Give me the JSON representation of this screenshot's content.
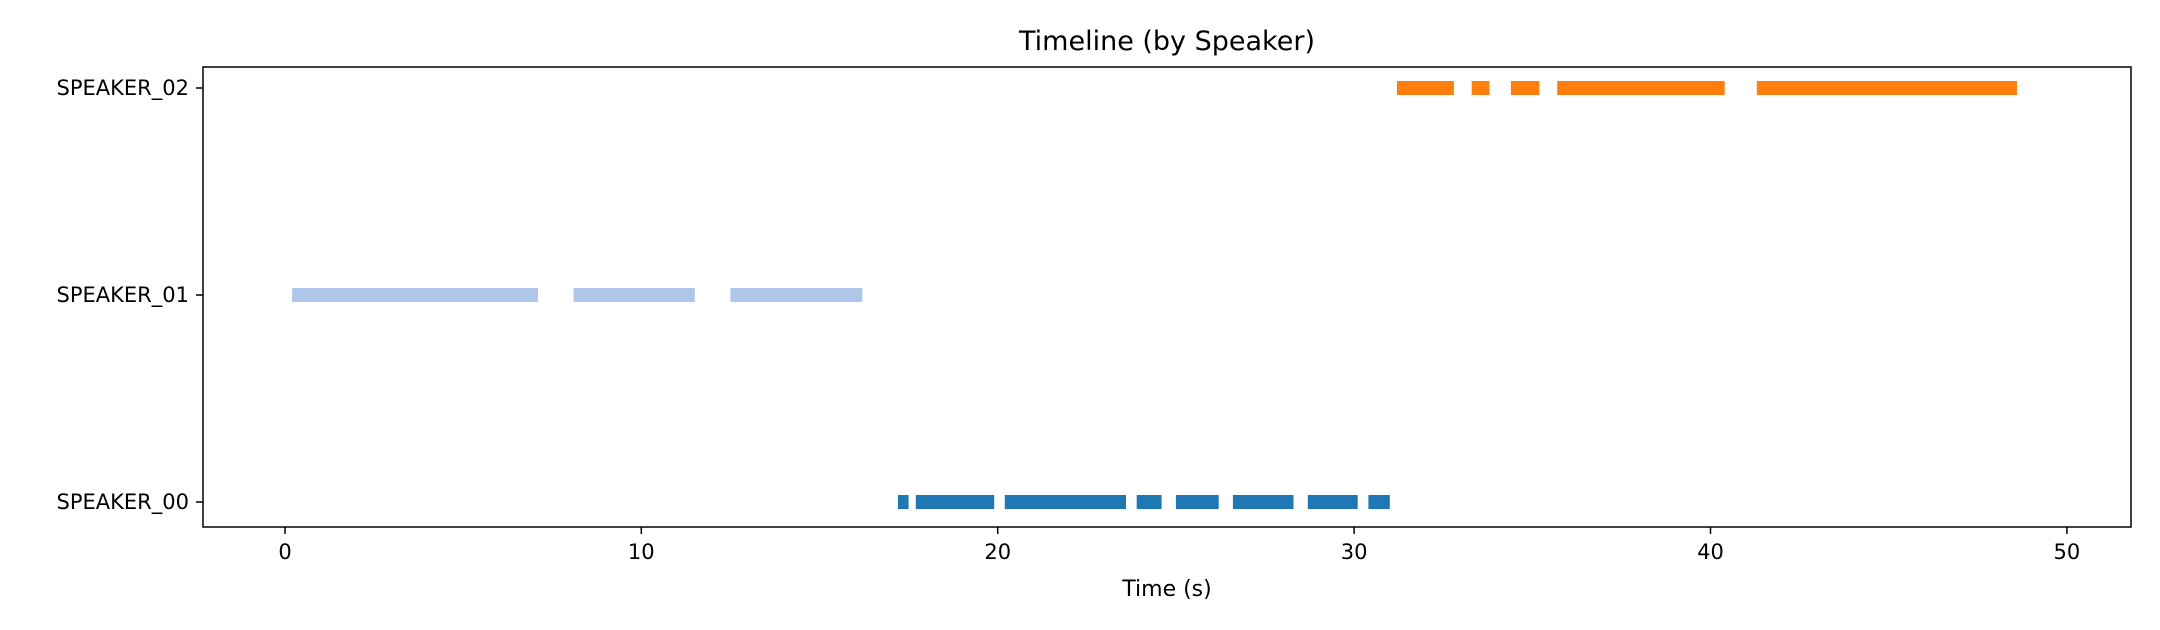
{
  "chart_data": {
    "type": "timeline",
    "title": "Timeline (by Speaker)",
    "xlabel": "Time (s)",
    "ylabel": "",
    "xlim": [
      -2.3,
      51.8
    ],
    "xticks": [
      0,
      10,
      20,
      30,
      40,
      50
    ],
    "grid": false,
    "categories": [
      "SPEAKER_00",
      "SPEAKER_01",
      "SPEAKER_02"
    ],
    "series": [
      {
        "name": "SPEAKER_00",
        "color": "#1f77b4",
        "segments": [
          [
            17.2,
            17.5
          ],
          [
            17.7,
            19.9
          ],
          [
            20.2,
            23.6
          ],
          [
            23.9,
            24.6
          ],
          [
            25.0,
            26.2
          ],
          [
            26.6,
            28.3
          ],
          [
            28.7,
            30.1
          ],
          [
            30.4,
            31.0
          ]
        ]
      },
      {
        "name": "SPEAKER_01",
        "color": "#aec7e8",
        "segments": [
          [
            0.2,
            7.1
          ],
          [
            8.1,
            11.5
          ],
          [
            12.5,
            16.2
          ]
        ]
      },
      {
        "name": "SPEAKER_02",
        "color": "#ff7f0e",
        "segments": [
          [
            31.2,
            32.8
          ],
          [
            33.3,
            33.8
          ],
          [
            34.4,
            35.2
          ],
          [
            35.7,
            40.4
          ],
          [
            41.3,
            48.6
          ]
        ]
      }
    ]
  }
}
